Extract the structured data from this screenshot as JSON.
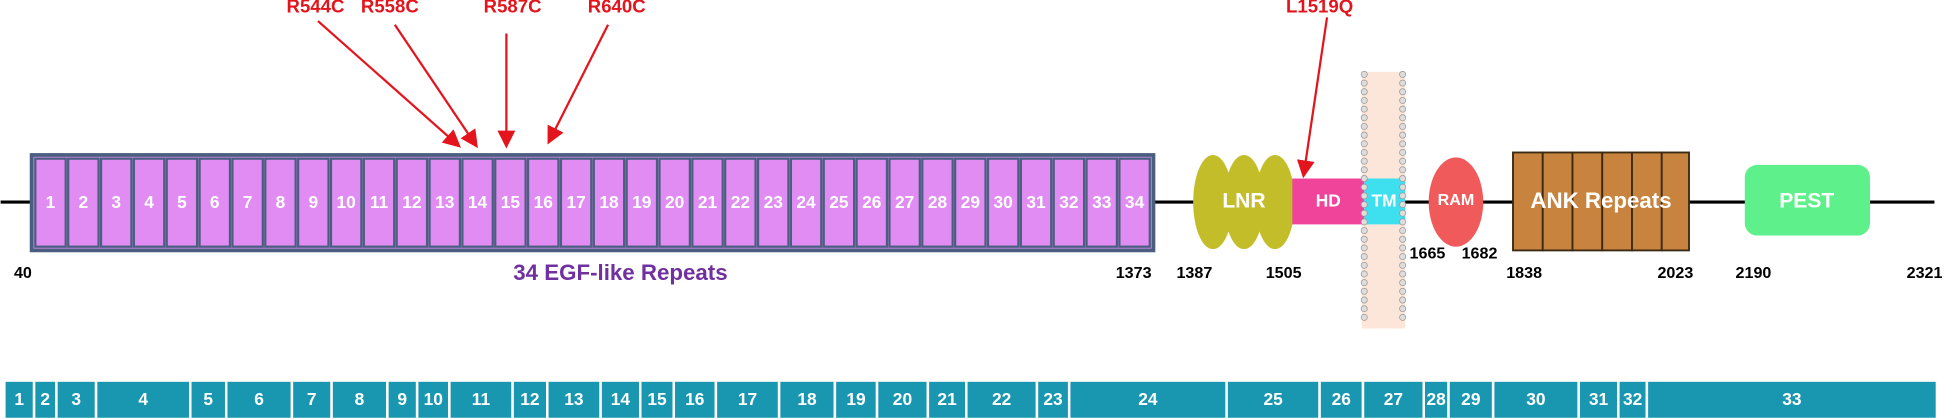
{
  "mutations": [
    "R544C",
    "R558C",
    "R587C",
    "R640C",
    "L1519Q"
  ],
  "egf_repeats": {
    "labels": [
      1,
      2,
      3,
      4,
      5,
      6,
      7,
      8,
      9,
      10,
      11,
      12,
      13,
      14,
      15,
      16,
      17,
      18,
      19,
      20,
      21,
      22,
      23,
      24,
      25,
      26,
      27,
      28,
      29,
      30,
      31,
      32,
      33,
      34
    ],
    "title": "34 EGF-like Repeats"
  },
  "domains": {
    "lnr": "LNR",
    "hd": "HD",
    "tm": "TM",
    "ram": "RAM",
    "ank": "ANK Repeats",
    "pest": "PEST"
  },
  "positions": [
    40,
    1373,
    1387,
    1505,
    1665,
    1682,
    1838,
    2023,
    2190,
    2321
  ],
  "exons": [
    1,
    2,
    3,
    4,
    5,
    6,
    7,
    8,
    9,
    10,
    11,
    12,
    13,
    14,
    15,
    16,
    17,
    18,
    19,
    20,
    21,
    22,
    23,
    24,
    25,
    26,
    27,
    28,
    29,
    30,
    31,
    32,
    33
  ]
}
